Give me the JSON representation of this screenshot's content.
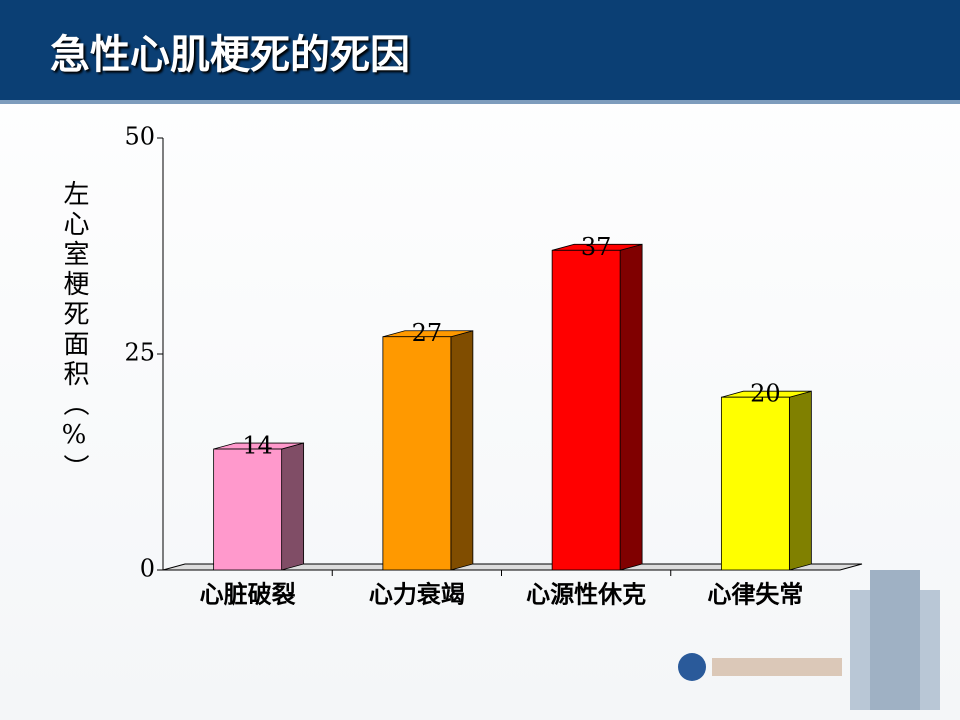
{
  "chart_data": {
    "type": "bar3d",
    "title": "急性心肌梗死的死因",
    "y_label": "左心室梗死面积（%）",
    "categories": [
      "心脏破裂",
      "心力衰竭",
      "心源性休克",
      "心律失常"
    ],
    "values": [
      14,
      27,
      37,
      20
    ],
    "colors": [
      "#ff99cc",
      "#ff9900",
      "#ff0000",
      "#ffff00"
    ],
    "ylim": [
      0,
      50
    ],
    "yticks": [
      0,
      25,
      50
    ]
  }
}
